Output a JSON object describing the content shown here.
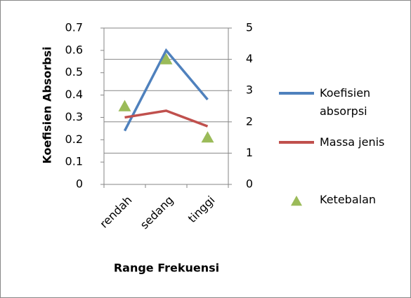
{
  "chart_data": {
    "type": "line",
    "categories": [
      "rendah",
      "sedang",
      "tinggi"
    ],
    "x_label": "Range Frekuensi",
    "y_label": "Koefisien Absorbsi",
    "ylim": [
      0,
      0.7
    ],
    "yticks": [
      0,
      0.1,
      0.2,
      0.3,
      0.4,
      0.5,
      0.6,
      0.7
    ],
    "y2lim": [
      0,
      5
    ],
    "y2ticks": [
      0,
      1,
      2,
      3,
      4,
      5
    ],
    "grid": true,
    "series": [
      {
        "name": "Koefisien absorpsi",
        "color": "#4f81bd",
        "values": [
          0.24,
          0.6,
          0.38
        ]
      },
      {
        "name": "Massa jenis",
        "color": "#c0504d",
        "values": [
          0.3,
          0.33,
          0.26
        ]
      },
      {
        "name": "Ketebalan",
        "color": "#9bbb59",
        "values": [
          2.5,
          4,
          1.5
        ],
        "axis": "y2",
        "marker": "triangle"
      }
    ]
  }
}
